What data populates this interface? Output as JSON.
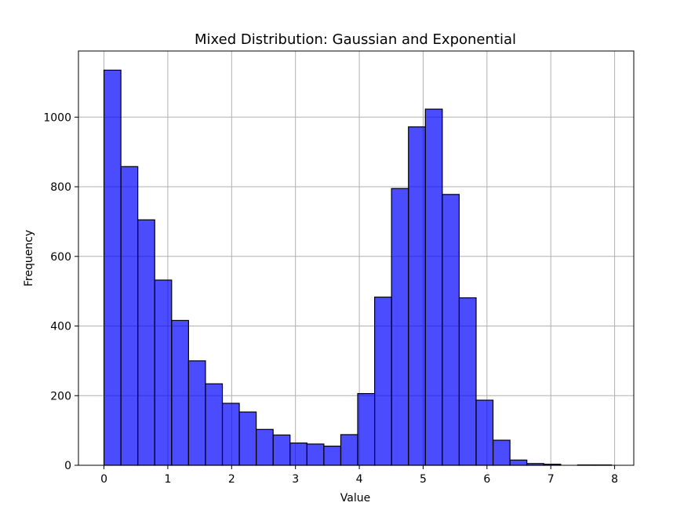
{
  "chart_data": {
    "type": "bar",
    "title": "Mixed Distribution: Gaussian and Exponential",
    "xlabel": "Value",
    "ylabel": "Frequency",
    "xlim": [
      -0.4,
      8.3
    ],
    "ylim": [
      0,
      1190
    ],
    "xticks": [
      0,
      1,
      2,
      3,
      4,
      5,
      6,
      7,
      8
    ],
    "yticks": [
      0,
      200,
      400,
      600,
      800,
      1000
    ],
    "grid": true,
    "bar_color": "#0000ff",
    "bar_alpha": 0.7,
    "edge_color": "#000000",
    "bins": [
      {
        "start": 0.0,
        "end": 0.265,
        "count": 1135
      },
      {
        "start": 0.265,
        "end": 0.53,
        "count": 858
      },
      {
        "start": 0.53,
        "end": 0.795,
        "count": 705
      },
      {
        "start": 0.795,
        "end": 1.06,
        "count": 532
      },
      {
        "start": 1.06,
        "end": 1.325,
        "count": 416
      },
      {
        "start": 1.325,
        "end": 1.59,
        "count": 300
      },
      {
        "start": 1.59,
        "end": 1.855,
        "count": 234
      },
      {
        "start": 1.855,
        "end": 2.12,
        "count": 178
      },
      {
        "start": 2.12,
        "end": 2.385,
        "count": 153
      },
      {
        "start": 2.385,
        "end": 2.65,
        "count": 103
      },
      {
        "start": 2.65,
        "end": 2.915,
        "count": 87
      },
      {
        "start": 2.915,
        "end": 3.18,
        "count": 64
      },
      {
        "start": 3.18,
        "end": 3.445,
        "count": 61
      },
      {
        "start": 3.445,
        "end": 3.71,
        "count": 55
      },
      {
        "start": 3.71,
        "end": 3.975,
        "count": 88
      },
      {
        "start": 3.975,
        "end": 4.24,
        "count": 206
      },
      {
        "start": 4.24,
        "end": 4.505,
        "count": 483
      },
      {
        "start": 4.505,
        "end": 4.77,
        "count": 795
      },
      {
        "start": 4.77,
        "end": 5.035,
        "count": 972
      },
      {
        "start": 5.035,
        "end": 5.3,
        "count": 1023
      },
      {
        "start": 5.3,
        "end": 5.565,
        "count": 778
      },
      {
        "start": 5.565,
        "end": 5.83,
        "count": 481
      },
      {
        "start": 5.83,
        "end": 6.095,
        "count": 187
      },
      {
        "start": 6.095,
        "end": 6.36,
        "count": 72
      },
      {
        "start": 6.36,
        "end": 6.625,
        "count": 15
      },
      {
        "start": 6.625,
        "end": 6.89,
        "count": 5
      },
      {
        "start": 6.89,
        "end": 7.155,
        "count": 3
      },
      {
        "start": 7.155,
        "end": 7.42,
        "count": 0
      },
      {
        "start": 7.42,
        "end": 7.685,
        "count": 1
      },
      {
        "start": 7.685,
        "end": 7.95,
        "count": 1
      }
    ]
  }
}
